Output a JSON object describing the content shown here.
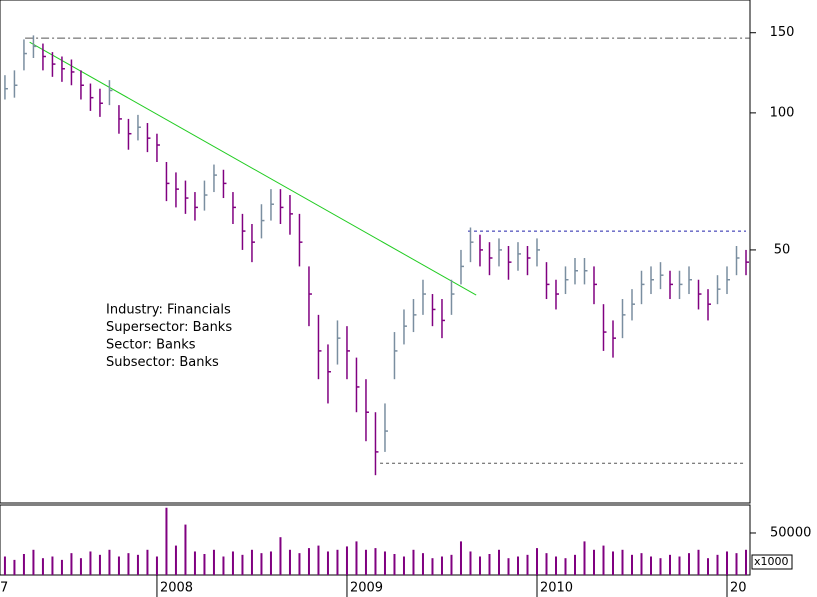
{
  "chart_data": [
    {
      "type": "ohlc",
      "log_scale": true,
      "xlim": [
        2007.174,
        2011.121
      ],
      "xticks": [
        {
          "value": 2007,
          "label": "7"
        },
        2008,
        2009,
        2010,
        {
          "value": 2011,
          "label": "20"
        }
      ],
      "ylim": [
        13.9,
        177
      ],
      "yticks": [
        50,
        100,
        150
      ],
      "up_color": "#7a8ea0",
      "down_color": "#800080",
      "annotations": [
        "Industry: Financials",
        "Supersector: Banks",
        "Sector: Banks",
        "Subsector: Banks"
      ],
      "x": [
        2007.2,
        2007.25,
        2007.3,
        2007.35,
        2007.4,
        2007.45,
        2007.5,
        2007.55,
        2007.6,
        2007.65,
        2007.7,
        2007.75,
        2007.8,
        2007.85,
        2007.9,
        2007.95,
        2008.0,
        2008.05,
        2008.1,
        2008.15,
        2008.2,
        2008.25,
        2008.3,
        2008.35,
        2008.4,
        2008.45,
        2008.5,
        2008.55,
        2008.6,
        2008.65,
        2008.7,
        2008.75,
        2008.8,
        2008.85,
        2008.9,
        2008.95,
        2009.0,
        2009.05,
        2009.1,
        2009.15,
        2009.2,
        2009.25,
        2009.3,
        2009.35,
        2009.4,
        2009.45,
        2009.5,
        2009.55,
        2009.6,
        2009.65,
        2009.7,
        2009.75,
        2009.8,
        2009.85,
        2009.9,
        2009.95,
        2010.0,
        2010.05,
        2010.1,
        2010.15,
        2010.2,
        2010.25,
        2010.3,
        2010.35,
        2010.4,
        2010.45,
        2010.5,
        2010.55,
        2010.6,
        2010.65,
        2010.7,
        2010.75,
        2010.8,
        2010.85,
        2010.9,
        2010.95,
        2011.0,
        2011.05,
        2011.1
      ],
      "high": [
        121,
        124,
        145,
        148,
        142,
        136,
        133,
        131,
        124,
        116,
        113,
        118,
        104,
        97,
        99,
        95,
        90,
        78,
        74,
        71,
        67,
        71,
        77,
        75,
        67,
        60,
        57,
        63,
        68,
        68,
        66,
        60,
        46,
        36,
        31,
        35,
        34,
        29,
        26,
        22,
        23,
        33,
        37,
        39,
        43,
        40,
        39,
        43,
        50,
        56,
        54,
        52,
        53,
        51,
        52,
        51,
        53,
        47,
        43,
        46,
        48,
        48,
        46,
        38,
        35,
        39,
        41,
        45,
        46,
        47,
        45,
        45,
        46,
        43,
        41,
        44,
        46,
        51,
        50
      ],
      "low": [
        107,
        108,
        124,
        132,
        124,
        120,
        117,
        115,
        107,
        101,
        98,
        104,
        90,
        83,
        87,
        82,
        78,
        64,
        62,
        60,
        58,
        61,
        67,
        65,
        57,
        50,
        47,
        53,
        58,
        57,
        54,
        46,
        34,
        26,
        23,
        28,
        26,
        22,
        19,
        16,
        18,
        26,
        31,
        33,
        36,
        34,
        32,
        36,
        42,
        47,
        46,
        44,
        46,
        43,
        45,
        44,
        46,
        39,
        37,
        40,
        42,
        42,
        38,
        30,
        29,
        32,
        35,
        38,
        40,
        41,
        39,
        39,
        40,
        37,
        35,
        38,
        40,
        44,
        44
      ],
      "close": [
        113,
        115,
        135,
        140,
        133,
        128,
        125,
        123,
        115,
        108,
        105,
        112,
        97,
        90,
        93,
        88,
        85,
        70,
        68,
        65,
        62,
        66,
        73,
        70,
        62,
        55,
        52,
        58,
        63,
        62,
        60,
        52,
        40,
        30,
        27,
        32,
        30,
        25,
        22,
        18,
        20,
        30,
        34,
        36,
        40,
        37,
        35,
        40,
        46,
        52,
        50,
        48,
        50,
        47,
        49,
        48,
        50,
        42,
        40,
        43,
        45,
        45,
        42,
        33,
        32,
        36,
        38,
        42,
        43,
        44,
        42,
        42,
        43,
        40,
        38,
        41,
        43,
        48,
        47
      ],
      "lines": [
        {
          "x": [
            2007.33,
            2009.68
          ],
          "y": [
            143,
            39.8
          ],
          "color": "#22cc22",
          "style": "solid"
        },
        {
          "x": [
            2007.306,
            2011.12
          ],
          "y": [
            146,
            146
          ],
          "color": "#555555",
          "style": "dashdot"
        },
        {
          "x": [
            2009.637,
            2011.1
          ],
          "y": [
            55,
            55
          ],
          "color": "#2222aa",
          "style": "dotted"
        },
        {
          "x": [
            2009.174,
            2011.1
          ],
          "y": [
            17,
            17
          ],
          "color": "#555555",
          "style": "dotted"
        }
      ]
    },
    {
      "type": "bar",
      "color": "#800080",
      "ylim": [
        0,
        83300
      ],
      "yticks": [
        50000
      ],
      "unit_label": "x1000",
      "values": [
        22000,
        18000,
        25000,
        30000,
        20000,
        22000,
        18000,
        26000,
        20000,
        28000,
        24000,
        30000,
        22000,
        26000,
        24000,
        30000,
        22000,
        80000,
        35000,
        60000,
        28000,
        25000,
        30000,
        22000,
        28000,
        24000,
        30000,
        26000,
        28000,
        45000,
        30000,
        26000,
        32000,
        35000,
        28000,
        30000,
        34000,
        40000,
        30000,
        32000,
        28000,
        25000,
        22000,
        30000,
        26000,
        20000,
        22000,
        24000,
        40000,
        28000,
        22000,
        25000,
        30000,
        20000,
        22000,
        24000,
        32000,
        26000,
        22000,
        20000,
        24000,
        40000,
        30000,
        35000,
        28000,
        30000,
        24000,
        26000,
        22000,
        20000,
        24000,
        22000,
        26000,
        30000,
        20000,
        24000,
        28000,
        26000,
        30000
      ]
    }
  ]
}
